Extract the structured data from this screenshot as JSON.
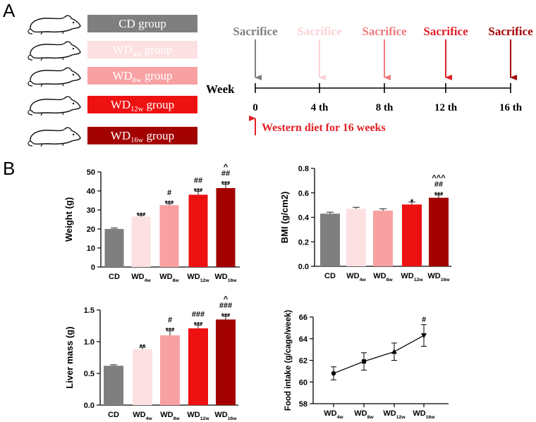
{
  "panel_a": {
    "label": "A",
    "groups": [
      {
        "name": "CD",
        "suffix": "",
        "tail": " group",
        "color": "#7f7f7f"
      },
      {
        "name": "WD",
        "suffix": "4w",
        "tail": " group",
        "color": "#fde0e2"
      },
      {
        "name": "WD",
        "suffix": "8w",
        "tail": " group",
        "color": "#f8a1a3"
      },
      {
        "name": "WD",
        "suffix": "12w",
        "tail": " group",
        "color": "#ee1111"
      },
      {
        "name": "WD",
        "suffix": "16w",
        "tail": " group",
        "color": "#a30000"
      }
    ],
    "timeline": {
      "axis_label": "Week",
      "ticks": [
        "0",
        "4 th",
        "8 th",
        "12 th",
        "16 th"
      ],
      "sacrifice_label": "Sacrifice",
      "sacrifice_colors": [
        "#7f7f7f",
        "#fbd3d6",
        "#f07a7d",
        "#e21f26",
        "#a30000"
      ],
      "diet_note": "Western diet for 16 weeks",
      "diet_color": "#e21f26"
    }
  },
  "panel_b": {
    "label": "B"
  },
  "chart_data": [
    {
      "type": "bar",
      "title": "",
      "ylabel": "Weight (g)",
      "ylim": [
        0,
        50
      ],
      "yticks": [
        "0",
        "10",
        "20",
        "30",
        "40",
        "50"
      ],
      "categories": [
        {
          "base": "CD",
          "sub": ""
        },
        {
          "base": "WD",
          "sub": "4w"
        },
        {
          "base": "WD",
          "sub": "8w"
        },
        {
          "base": "WD",
          "sub": "12w"
        },
        {
          "base": "WD",
          "sub": "16w"
        }
      ],
      "values": [
        20.0,
        26.5,
        32.5,
        38.0,
        41.5
      ],
      "errors": [
        0.5,
        0.6,
        0.8,
        1.8,
        2.0
      ],
      "colors": [
        "#7f7f7f",
        "#fde0e2",
        "#f8a1a3",
        "#ee1111",
        "#a30000"
      ],
      "annotations": [
        [],
        [
          "***"
        ],
        [
          "***",
          "#"
        ],
        [
          "***",
          "##"
        ],
        [
          "***",
          "##",
          "^"
        ]
      ]
    },
    {
      "type": "bar",
      "title": "",
      "ylabel": "BMI (g/cm2)",
      "ylim": [
        0,
        0.8
      ],
      "yticks": [
        "0.0",
        "0.2",
        "0.4",
        "0.6",
        "0.8"
      ],
      "categories": [
        {
          "base": "CD",
          "sub": ""
        },
        {
          "base": "WD",
          "sub": "4w"
        },
        {
          "base": "WD",
          "sub": "8w"
        },
        {
          "base": "WD",
          "sub": "12w"
        },
        {
          "base": "WD",
          "sub": "16w"
        }
      ],
      "values": [
        0.43,
        0.47,
        0.455,
        0.505,
        0.56
      ],
      "errors": [
        0.012,
        0.012,
        0.015,
        0.02,
        0.022
      ],
      "colors": [
        "#7f7f7f",
        "#fde0e2",
        "#f8a1a3",
        "#ee1111",
        "#a30000"
      ],
      "annotations": [
        [],
        [],
        [],
        [
          "*"
        ],
        [
          "***",
          "##",
          "^^^"
        ]
      ]
    },
    {
      "type": "bar",
      "title": "",
      "ylabel": "Liver mass  (g)",
      "ylim": [
        0,
        1.5
      ],
      "yticks": [
        "0.0",
        "0.5",
        "1.0",
        "1.5"
      ],
      "categories": [
        {
          "base": "CD",
          "sub": ""
        },
        {
          "base": "WD",
          "sub": "4w"
        },
        {
          "base": "WD",
          "sub": "8w"
        },
        {
          "base": "WD",
          "sub": "12w"
        },
        {
          "base": "WD",
          "sub": "16w"
        }
      ],
      "values": [
        0.62,
        0.88,
        1.1,
        1.21,
        1.35
      ],
      "errors": [
        0.015,
        0.03,
        0.07,
        0.05,
        0.05
      ],
      "colors": [
        "#7f7f7f",
        "#fde0e2",
        "#f8a1a3",
        "#ee1111",
        "#a30000"
      ],
      "annotations": [
        [],
        [
          "**"
        ],
        [
          "***",
          "#"
        ],
        [
          "***",
          "###"
        ],
        [
          "***",
          "###",
          "^"
        ]
      ]
    },
    {
      "type": "line",
      "title": "",
      "ylabel": "Food intake (g/cage/week)",
      "ylim": [
        58,
        66
      ],
      "yticks": [
        "58",
        "60",
        "62",
        "64",
        "66"
      ],
      "categories": [
        {
          "base": "WD",
          "sub": "4w"
        },
        {
          "base": "WD",
          "sub": "8w"
        },
        {
          "base": "WD",
          "sub": "12w"
        },
        {
          "base": "WD",
          "sub": "16w"
        }
      ],
      "values": [
        60.8,
        61.9,
        62.8,
        64.3
      ],
      "errors": [
        0.6,
        0.8,
        0.8,
        1.0
      ],
      "markers": [
        "circle",
        "square",
        "triangle-up",
        "triangle-down"
      ],
      "annotations": [
        [],
        [],
        [],
        [
          "#"
        ]
      ]
    }
  ]
}
